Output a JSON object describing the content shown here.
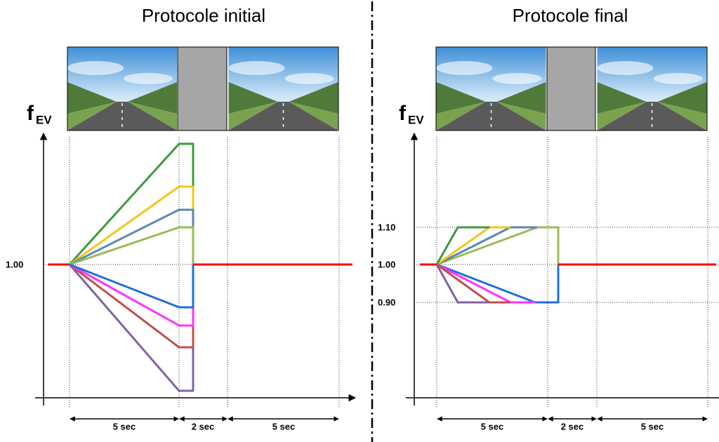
{
  "panels": [
    {
      "title": "Protocole initial",
      "y_label": "f",
      "y_label_sub": "EV",
      "y_ticks": [
        "1.00"
      ],
      "durations": [
        "5 sec",
        "2 sec",
        "5 sec"
      ]
    },
    {
      "title": "Protocole final",
      "y_label": "f",
      "y_label_sub": "EV",
      "y_ticks": [
        "1.10",
        "1.00",
        "0.90"
      ],
      "durations": [
        "5 sec",
        "2 sec",
        "5 sec"
      ]
    }
  ]
}
